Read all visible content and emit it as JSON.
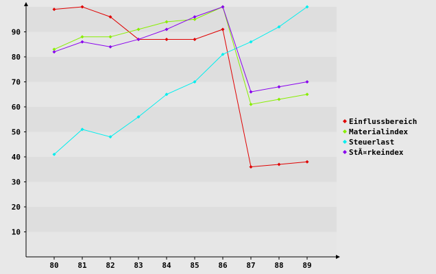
{
  "chart_data": {
    "type": "line",
    "categories": [
      "80",
      "81",
      "82",
      "83",
      "84",
      "85",
      "86",
      "87",
      "88",
      "89"
    ],
    "ylim": [
      0,
      100
    ],
    "yticks": [
      "10",
      "20",
      "30",
      "40",
      "50",
      "60",
      "70",
      "80",
      "90"
    ],
    "grid": "horizontal bands",
    "legend_position": "right",
    "series": [
      {
        "name": "Einflussbereich",
        "color": "#e00000",
        "values": [
          99,
          100,
          96,
          87,
          87,
          87,
          91,
          36,
          37,
          38
        ]
      },
      {
        "name": "Materialindex",
        "color": "#88ee00",
        "values": [
          83,
          88,
          88,
          91,
          94,
          95,
          100,
          61,
          63,
          65
        ]
      },
      {
        "name": "Steuerlast",
        "color": "#00eeee",
        "values": [
          41,
          51,
          48,
          56,
          65,
          70,
          81,
          86,
          92,
          100
        ]
      },
      {
        "name": "StÃ¤rkeindex",
        "color": "#8800ee",
        "values": [
          82,
          86,
          84,
          87,
          91,
          96,
          100,
          66,
          68,
          70
        ]
      }
    ]
  }
}
